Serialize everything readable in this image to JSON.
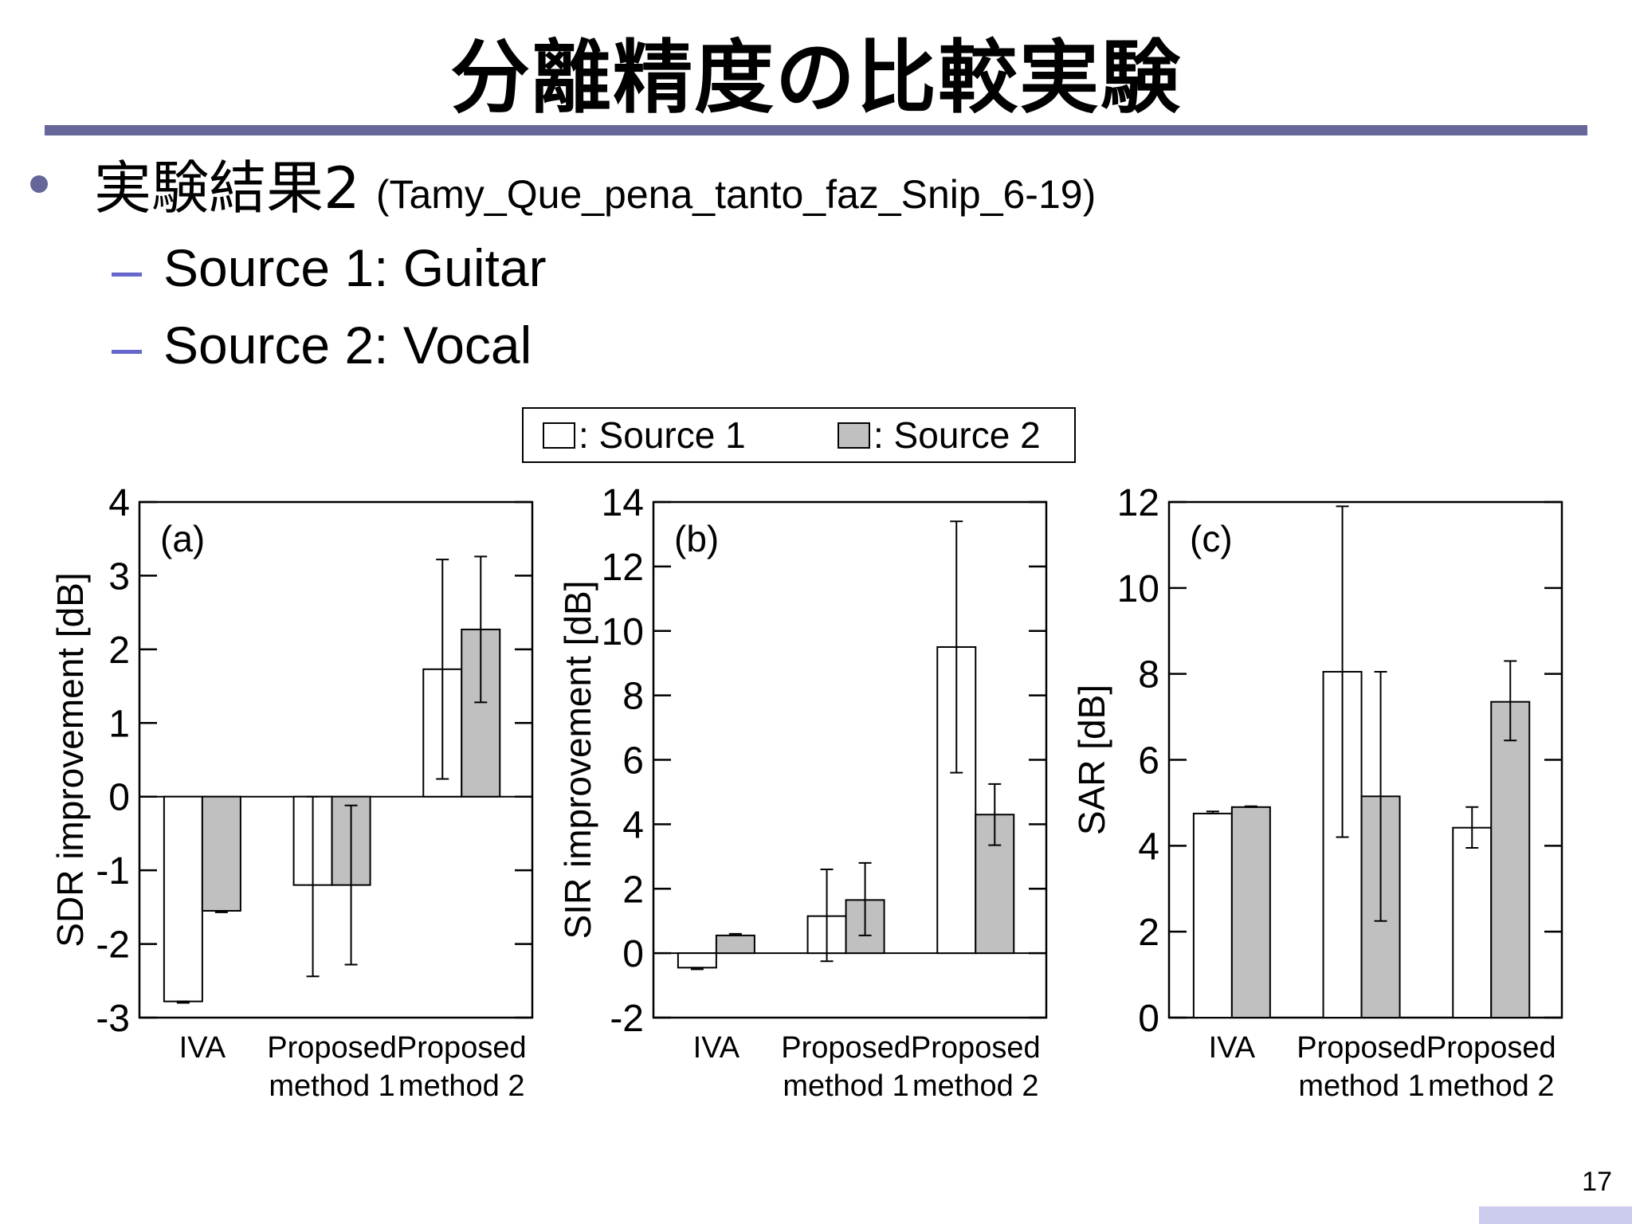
{
  "slide": {
    "title": "分離精度の比較実験",
    "bullet_main_jp": "実験結果2",
    "bullet_main_en": "(Tamy_Que_pena_tanto_faz_Snip_6-19)",
    "sub_items": [
      "Source 1: Guitar",
      "Source 2: Vocal"
    ],
    "page_number": "17"
  },
  "legend": {
    "items": [
      ": Source 1",
      ": Source 2"
    ]
  },
  "colors": {
    "accent": "#666699",
    "dash": "#6666cc",
    "source1": "#ffffff",
    "source2": "#c0c0c0"
  },
  "chart_data": [
    {
      "type": "bar",
      "panel_label": "(a)",
      "categories": [
        "IVA",
        "Proposed\nmethod 1",
        "Proposed\nmethod 2"
      ],
      "series": [
        {
          "name": "Source 1",
          "values": [
            -2.78,
            -1.2,
            1.73
          ],
          "err_low": [
            -2.8,
            -2.44,
            0.24
          ],
          "err_high": [
            -2.78,
            0.0,
            3.22
          ]
        },
        {
          "name": "Source 2",
          "values": [
            -1.55,
            -1.2,
            2.27
          ],
          "err_low": [
            -1.57,
            -2.28,
            1.28
          ],
          "err_high": [
            -1.55,
            -0.12,
            3.26
          ]
        }
      ],
      "ylabel": "SDR improvement [dB]",
      "ylim": [
        -3,
        4
      ],
      "yticks": [
        4,
        3,
        2,
        1,
        0,
        -1,
        -2,
        -3
      ],
      "baseline": 0
    },
    {
      "type": "bar",
      "panel_label": "(b)",
      "categories": [
        "IVA",
        "Proposed\nmethod 1",
        "Proposed\nmethod 2"
      ],
      "series": [
        {
          "name": "Source 1",
          "values": [
            -0.45,
            1.15,
            9.5
          ],
          "err_low": [
            -0.5,
            -0.25,
            5.6
          ],
          "err_high": [
            -0.45,
            2.6,
            13.4
          ]
        },
        {
          "name": "Source 2",
          "values": [
            0.55,
            1.65,
            4.3
          ],
          "err_low": [
            0.55,
            0.55,
            3.35
          ],
          "err_high": [
            0.6,
            2.8,
            5.25
          ]
        }
      ],
      "ylabel": "SIR improvement [dB]",
      "ylim": [
        -2,
        14
      ],
      "yticks": [
        14,
        12,
        10,
        8,
        6,
        4,
        2,
        0,
        -2
      ],
      "baseline": 0
    },
    {
      "type": "bar",
      "panel_label": "(c)",
      "categories": [
        "IVA",
        "Proposed\nmethod 1",
        "Proposed\nmethod 2"
      ],
      "series": [
        {
          "name": "Source 1",
          "values": [
            4.75,
            8.05,
            4.42
          ],
          "err_low": [
            4.75,
            4.2,
            3.95
          ],
          "err_high": [
            4.8,
            11.9,
            4.9
          ]
        },
        {
          "name": "Source 2",
          "values": [
            4.9,
            5.15,
            7.35
          ],
          "err_low": [
            4.9,
            2.25,
            6.45
          ],
          "err_high": [
            4.92,
            8.05,
            8.3
          ]
        }
      ],
      "ylabel": "SAR [dB]",
      "ylim": [
        0,
        12
      ],
      "yticks": [
        12,
        10,
        8,
        6,
        4,
        2,
        0
      ],
      "baseline": 0
    }
  ]
}
